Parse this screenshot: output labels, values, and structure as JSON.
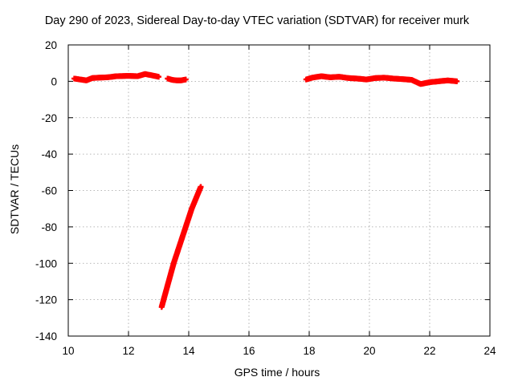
{
  "chart_data": {
    "type": "scatter",
    "title": "Day 290 of 2023, Sidereal Day-to-day VTEC variation (SDTVAR) for receiver murk",
    "xlabel": "GPS time / hours",
    "ylabel": "SDTVAR / TECUs",
    "xlim": [
      10,
      24
    ],
    "ylim": [
      -140,
      20
    ],
    "xticks": [
      10,
      12,
      14,
      16,
      18,
      20,
      22,
      24
    ],
    "yticks": [
      20,
      0,
      -20,
      -40,
      -60,
      -80,
      -100,
      -120,
      -140
    ],
    "grid": true,
    "marker_color": "#ff0000",
    "series": [
      {
        "name": "segment-1",
        "x": [
          10.2,
          10.4,
          10.6,
          10.8,
          11.0,
          11.3,
          11.6,
          12.0,
          12.3,
          12.55,
          12.8,
          13.0
        ],
        "y": [
          1.5,
          1.0,
          0.5,
          1.8,
          2.0,
          2.2,
          2.8,
          3.0,
          2.8,
          4.0,
          3.2,
          2.5
        ]
      },
      {
        "name": "segment-2",
        "x": [
          13.3,
          13.45,
          13.6,
          13.75,
          13.9
        ],
        "y": [
          1.5,
          0.8,
          0.5,
          0.5,
          1.0
        ]
      },
      {
        "name": "segment-3",
        "x": [
          13.1,
          13.3,
          13.5,
          13.7,
          13.9,
          14.1,
          14.3,
          14.4
        ],
        "y": [
          -124,
          -112,
          -100,
          -90,
          -80,
          -70,
          -62,
          -58
        ]
      },
      {
        "name": "segment-4",
        "x": [
          17.9,
          18.1,
          18.4,
          18.7,
          19.0,
          19.3,
          19.6,
          19.9,
          20.2,
          20.5,
          20.8,
          21.1,
          21.4,
          21.7,
          22.0,
          22.3,
          22.6,
          22.9
        ],
        "y": [
          1.0,
          2.0,
          2.8,
          2.2,
          2.5,
          1.8,
          1.5,
          1.0,
          1.8,
          2.0,
          1.5,
          1.2,
          0.8,
          -1.5,
          -0.5,
          0.0,
          0.5,
          0.0
        ]
      }
    ]
  }
}
